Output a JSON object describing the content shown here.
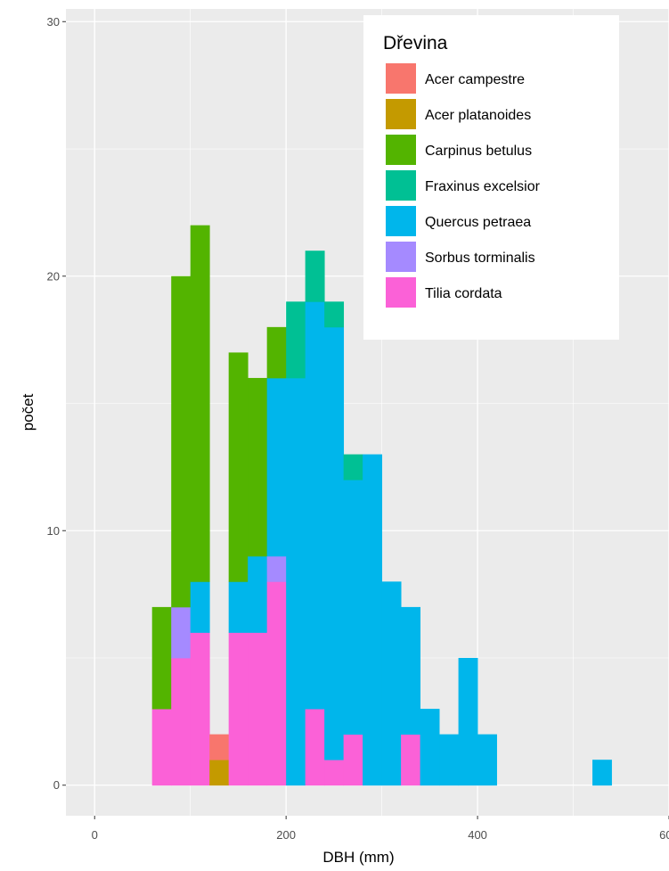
{
  "chart_data": {
    "type": "bar",
    "subtype": "stacked-histogram",
    "xlabel": "DBH (mm)",
    "ylabel": "počet",
    "xlim": [
      -30,
      600
    ],
    "ylim": [
      -1.2,
      30.5
    ],
    "xticks": [
      0,
      200,
      400,
      600
    ],
    "xtick_labels": [
      "0",
      "200",
      "400",
      "600"
    ],
    "yticks": [
      0,
      10,
      20,
      30
    ],
    "ytick_labels": [
      "0",
      "10",
      "20",
      "30"
    ],
    "grid": true,
    "legend": {
      "title": "Dřevina",
      "position": "top-right"
    },
    "bin_width": 20,
    "bins": [
      60,
      80,
      100,
      120,
      140,
      160,
      180,
      200,
      220,
      240,
      260,
      280,
      300,
      320,
      340,
      360,
      380,
      400,
      520
    ],
    "series": [
      {
        "name": "Acer campestre",
        "color": "#f8766d",
        "values": [
          0,
          0,
          0,
          1,
          0,
          0,
          0,
          0,
          0,
          0,
          0,
          0,
          0,
          0,
          0,
          0,
          0,
          0,
          0
        ]
      },
      {
        "name": "Acer platanoides",
        "color": "#c49a00",
        "values": [
          0,
          0,
          0,
          1,
          0,
          0,
          0,
          0,
          0,
          0,
          0,
          0,
          0,
          0,
          0,
          0,
          0,
          0,
          0
        ]
      },
      {
        "name": "Carpinus betulus",
        "color": "#53b400",
        "values": [
          4,
          13,
          14,
          0,
          9,
          7,
          2,
          0,
          0,
          0,
          0,
          0,
          0,
          0,
          0,
          0,
          0,
          0,
          0
        ]
      },
      {
        "name": "Fraxinus excelsior",
        "color": "#00c094",
        "values": [
          0,
          0,
          0,
          0,
          0,
          0,
          0,
          3,
          2,
          1,
          1,
          0,
          0,
          0,
          0,
          0,
          0,
          0,
          0
        ]
      },
      {
        "name": "Quercus petraea",
        "color": "#00b6eb",
        "values": [
          0,
          0,
          2,
          0,
          2,
          3,
          7,
          16,
          16,
          17,
          10,
          13,
          8,
          5,
          3,
          2,
          5,
          2,
          1
        ]
      },
      {
        "name": "Sorbus torminalis",
        "color": "#a58aff",
        "values": [
          0,
          2,
          0,
          0,
          0,
          0,
          1,
          0,
          0,
          0,
          0,
          0,
          0,
          0,
          0,
          0,
          0,
          0,
          0
        ]
      },
      {
        "name": "Tilia cordata",
        "color": "#fb61d7",
        "values": [
          3,
          5,
          6,
          0,
          6,
          6,
          8,
          0,
          3,
          1,
          2,
          0,
          0,
          2,
          0,
          0,
          0,
          0,
          0
        ]
      }
    ],
    "panel_background": "#ebebeb",
    "grid_color": "#ffffff"
  }
}
